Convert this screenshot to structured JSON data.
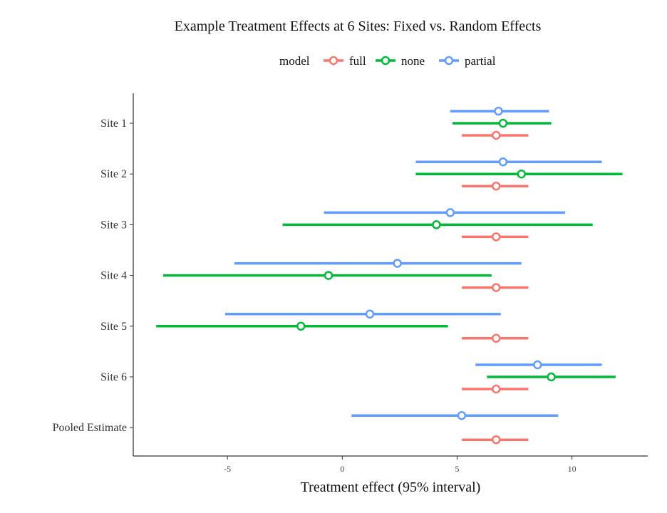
{
  "chart_data": {
    "type": "dot-and-whisker",
    "title": "Example Treatment Effects at 6 Sites: Fixed vs. Random Effects",
    "xlabel": "Treatment effect (95% interval)",
    "ylabel": "",
    "xlim": [
      -9.1,
      13.3
    ],
    "x_ticks": [
      -5,
      0,
      5,
      10
    ],
    "grid": false,
    "legend": {
      "position": "top",
      "title": "model",
      "entries": [
        "full",
        "none",
        "partial"
      ]
    },
    "categories": [
      "Site 1",
      "Site 2",
      "Site 3",
      "Site 4",
      "Site 5",
      "Site 6",
      "Pooled Estimate"
    ],
    "series": [
      {
        "name": "partial",
        "color": "#619CFF",
        "points": [
          {
            "category": "Site 1",
            "estimate": 6.8,
            "lower": 4.7,
            "upper": 9.0
          },
          {
            "category": "Site 2",
            "estimate": 7.0,
            "lower": 3.2,
            "upper": 11.3
          },
          {
            "category": "Site 3",
            "estimate": 4.7,
            "lower": -0.8,
            "upper": 9.7
          },
          {
            "category": "Site 4",
            "estimate": 2.4,
            "lower": -4.7,
            "upper": 7.8
          },
          {
            "category": "Site 5",
            "estimate": 1.2,
            "lower": -5.1,
            "upper": 6.9
          },
          {
            "category": "Site 6",
            "estimate": 8.5,
            "lower": 5.8,
            "upper": 11.3
          },
          {
            "category": "Pooled Estimate",
            "estimate": 5.2,
            "lower": 0.4,
            "upper": 9.4
          }
        ]
      },
      {
        "name": "none",
        "color": "#00BA38",
        "points": [
          {
            "category": "Site 1",
            "estimate": 7.0,
            "lower": 4.8,
            "upper": 9.1
          },
          {
            "category": "Site 2",
            "estimate": 7.8,
            "lower": 3.2,
            "upper": 12.2
          },
          {
            "category": "Site 3",
            "estimate": 4.1,
            "lower": -2.6,
            "upper": 10.9
          },
          {
            "category": "Site 4",
            "estimate": -0.6,
            "lower": -7.8,
            "upper": 6.5
          },
          {
            "category": "Site 5",
            "estimate": -1.8,
            "lower": -8.1,
            "upper": 4.6
          },
          {
            "category": "Site 6",
            "estimate": 9.1,
            "lower": 6.3,
            "upper": 11.9
          }
        ]
      },
      {
        "name": "full",
        "color": "#F8766D",
        "points": [
          {
            "category": "Site 1",
            "estimate": 6.7,
            "lower": 5.2,
            "upper": 8.1
          },
          {
            "category": "Site 2",
            "estimate": 6.7,
            "lower": 5.2,
            "upper": 8.1
          },
          {
            "category": "Site 3",
            "estimate": 6.7,
            "lower": 5.2,
            "upper": 8.1
          },
          {
            "category": "Site 4",
            "estimate": 6.7,
            "lower": 5.2,
            "upper": 8.1
          },
          {
            "category": "Site 5",
            "estimate": 6.7,
            "lower": 5.2,
            "upper": 8.1
          },
          {
            "category": "Site 6",
            "estimate": 6.7,
            "lower": 5.2,
            "upper": 8.1
          },
          {
            "category": "Pooled Estimate",
            "estimate": 6.7,
            "lower": 5.2,
            "upper": 8.1
          }
        ]
      }
    ]
  }
}
